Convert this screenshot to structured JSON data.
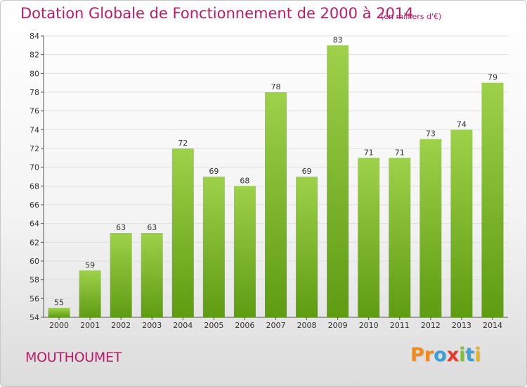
{
  "header": {
    "title": "Dotation Globale de Fonctionnement de 2000 à 2014",
    "unit": "(en milliers d'€)"
  },
  "footer": {
    "commune": "MOUTHOUMET",
    "logo": [
      "P",
      "r",
      "o",
      "x",
      "i",
      "t",
      "i"
    ],
    "logo_colors": [
      "#f08a1c",
      "#f08a1c",
      "#3aa0d8",
      "#e83a2a",
      "#7cc52a",
      "#3aa0d8",
      "#e8b21c"
    ]
  },
  "colors": {
    "bar_top": "#9ed14a",
    "bar_bottom": "#5e9c12",
    "accent": "#c0186a",
    "grid": "#e0e0e0"
  },
  "chart_data": {
    "type": "bar",
    "title": "Dotation Globale de Fonctionnement de 2000 à 2014",
    "subtitle": "(en milliers d'€)",
    "categories": [
      "2000",
      "2001",
      "2002",
      "2003",
      "2004",
      "2005",
      "2006",
      "2007",
      "2008",
      "2009",
      "2010",
      "2011",
      "2012",
      "2013",
      "2014"
    ],
    "values": [
      55,
      59,
      63,
      63,
      72,
      69,
      68,
      78,
      69,
      83,
      71,
      71,
      73,
      74,
      79
    ],
    "ylim": [
      54,
      84
    ],
    "yticks": [
      54,
      56,
      58,
      60,
      62,
      64,
      66,
      68,
      70,
      72,
      74,
      76,
      78,
      80,
      82,
      84
    ],
    "xlabel": "",
    "ylabel": "",
    "grid": true,
    "data_labels": true
  }
}
